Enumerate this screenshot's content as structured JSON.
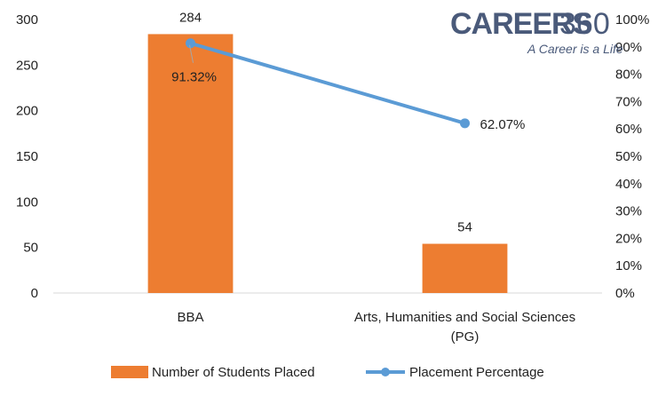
{
  "logo": {
    "brand": "CAREERS",
    "brand_number": "360",
    "tagline": "A Career is a Life"
  },
  "chart_data": {
    "type": "bar",
    "categories": [
      "BBA",
      "Arts, Humanities and Social Sciences (PG)"
    ],
    "category_label_lines": [
      [
        "BBA"
      ],
      [
        "Arts, Humanities and Social Sciences",
        "(PG)"
      ]
    ],
    "series": [
      {
        "name": "Number of Students Placed",
        "type": "bar",
        "axis": "left",
        "values": [
          284,
          54
        ],
        "labels": [
          "284",
          "54"
        ],
        "color": "#ed7d31"
      },
      {
        "name": "Placement Percentage",
        "type": "line",
        "axis": "right",
        "values": [
          91.32,
          62.07
        ],
        "labels": [
          "91.32%",
          "62.07%"
        ],
        "color": "#5b9bd5"
      }
    ],
    "y_left": {
      "min": 0,
      "max": 300,
      "ticks": [
        "0",
        "50",
        "100",
        "150",
        "200",
        "250",
        "300"
      ]
    },
    "y_right": {
      "min": 0,
      "max": 100,
      "ticks": [
        "0%",
        "10%",
        "20%",
        "30%",
        "40%",
        "50%",
        "60%",
        "70%",
        "80%",
        "90%",
        "100%"
      ]
    },
    "title": "",
    "xlabel": "",
    "ylabel": "",
    "grid": false,
    "legend_position": "bottom"
  }
}
